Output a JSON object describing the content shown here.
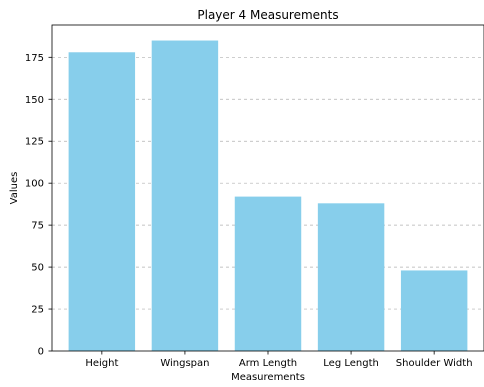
{
  "chart_data": {
    "type": "bar",
    "title": "Player 4 Measurements",
    "xlabel": "Measurements",
    "ylabel": "Values",
    "categories": [
      "Height",
      "Wingspan",
      "Arm Length",
      "Leg Length",
      "Shoulder Width"
    ],
    "values": [
      178,
      185,
      92,
      88,
      48
    ],
    "ylim": [
      0,
      194.25
    ],
    "yticks": [
      0,
      25,
      50,
      75,
      100,
      125,
      150,
      175
    ],
    "grid": "y-dashed",
    "bar_color": "#87ceeb"
  }
}
